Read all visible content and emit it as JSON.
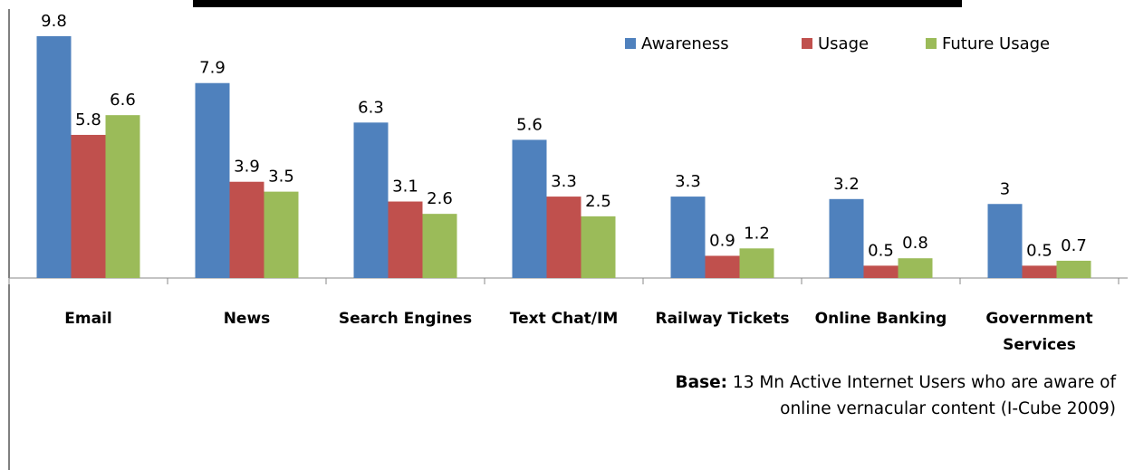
{
  "chart_data": {
    "type": "bar",
    "categories": [
      "Email",
      "News",
      "Search Engines",
      "Text Chat/IM",
      "Railway Tickets",
      "Online Banking",
      "Government Services"
    ],
    "series": [
      {
        "name": "Awareness",
        "color": "#4f81bd",
        "values": [
          9.8,
          7.9,
          6.3,
          5.6,
          3.3,
          3.2,
          3
        ]
      },
      {
        "name": "Usage",
        "color": "#c0504d",
        "values": [
          5.8,
          3.9,
          3.1,
          3.3,
          0.9,
          0.5,
          0.5
        ]
      },
      {
        "name": "Future Usage",
        "color": "#9bbb59",
        "values": [
          6.6,
          3.5,
          2.6,
          2.5,
          1.2,
          0.8,
          0.7
        ]
      }
    ],
    "legend": "top-right",
    "footnote": {
      "label": "Base:",
      "lines": [
        "13 Mn Active Internet Users who are aware of",
        "online vernacular content (I-Cube 2009)"
      ]
    }
  }
}
